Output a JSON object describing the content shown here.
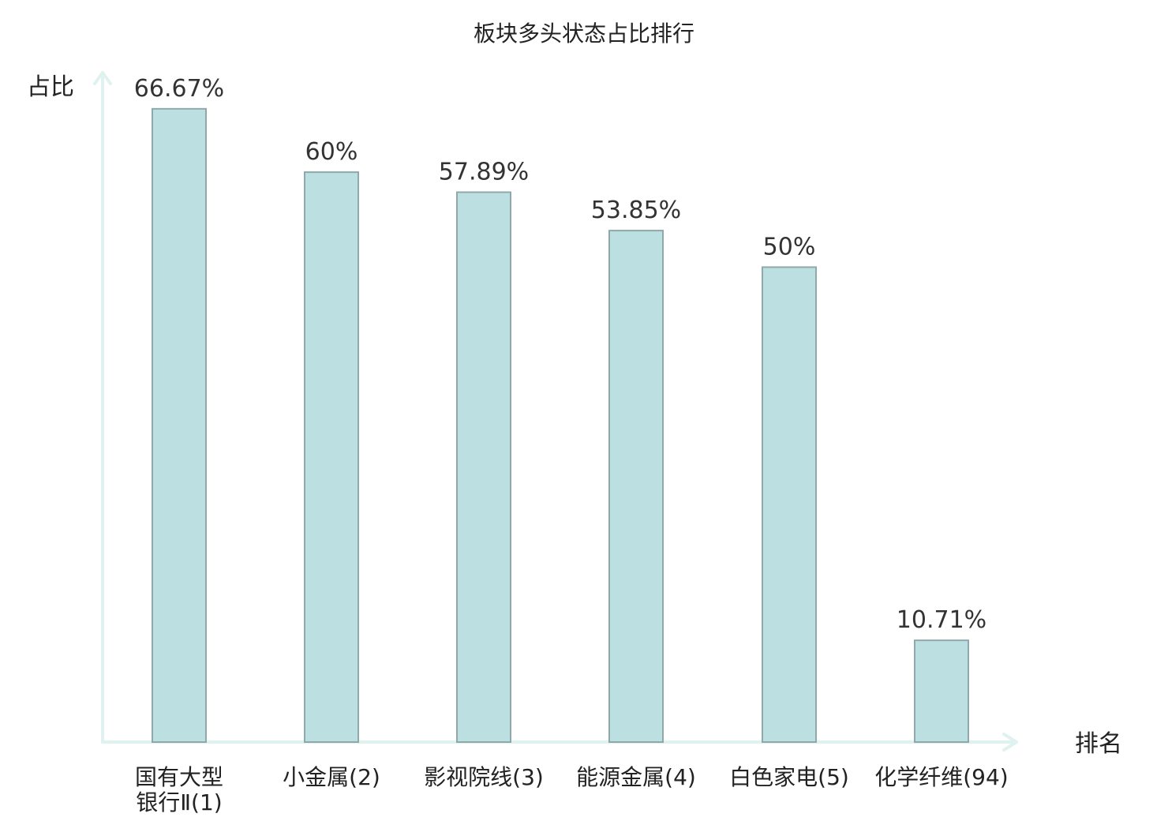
{
  "chart_data": {
    "type": "bar",
    "title": "板块多头状态占比排行",
    "ylabel": "占比",
    "xlabel": "排名",
    "categories": [
      [
        "国有大型",
        "银行Ⅱ(1)"
      ],
      [
        "小金属(2)"
      ],
      [
        "影视院线(3)"
      ],
      [
        "能源金属(4)"
      ],
      [
        "白色家电(5)"
      ],
      [
        "化学纤维(94)"
      ]
    ],
    "values": [
      66.67,
      60,
      57.89,
      53.85,
      50,
      10.71
    ],
    "value_labels": [
      "66.67%",
      "60%",
      "57.89%",
      "53.85%",
      "50%",
      "10.71%"
    ],
    "ylim": [
      0,
      69.4
    ],
    "grid": false,
    "highlight_index": 5,
    "colors": {
      "bar_fill": "#bce0e2",
      "bar_stroke": "#8fa9ab",
      "axis": "#e0f2ef",
      "highlight_text": "#e8221c",
      "text": "#222222"
    }
  }
}
